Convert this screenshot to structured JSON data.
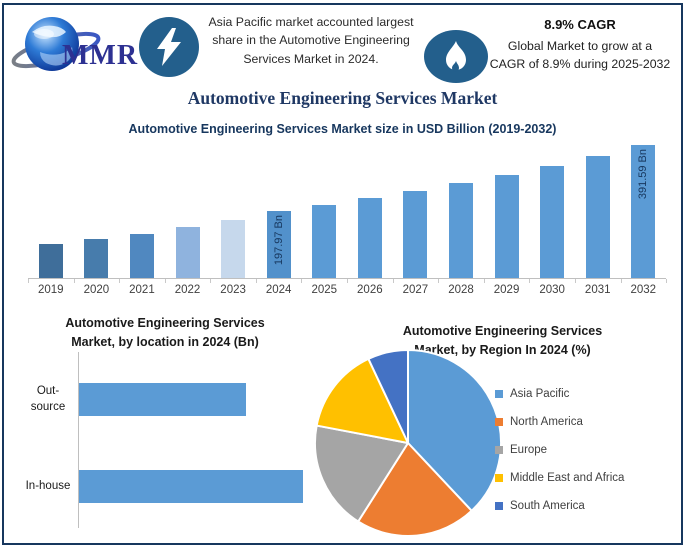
{
  "header": {
    "logo": {
      "text": "MMR"
    },
    "asia_pacific_note": "Asia Pacific market accounted largest\nshare in the Automotive Engineering\nServices Market in 2024.",
    "cagr_title": "8.9% CAGR",
    "cagr_note": "Global Market to grow at a\nCAGR of 8.9% during 2025-2032"
  },
  "main_title": "Automotive Engineering Services Market",
  "colors": {
    "frame": "#17375E",
    "icon_circle": "#235F8C",
    "default_bar": "#5B9BD5",
    "axis": "#BFBFBF",
    "data_label_text": "#17375E"
  },
  "chart_data": [
    {
      "type": "bar",
      "title": "Automotive Engineering Services Market size in USD Billion (2019-2032)",
      "xlabel": "",
      "ylabel": "USD Billion",
      "unit": "Bn",
      "grid": false,
      "ylim": [
        0,
        400
      ],
      "categories": [
        "2019",
        "2020",
        "2021",
        "2022",
        "2023",
        "2024",
        "2025",
        "2026",
        "2027",
        "2028",
        "2029",
        "2030",
        "2031",
        "2032"
      ],
      "values": [
        100,
        114,
        130,
        150,
        172,
        197.97,
        215.6,
        234.8,
        255.7,
        278.4,
        303.2,
        330.2,
        359.6,
        391.59
      ],
      "data_labels": {
        "2024": "197.97 Bn",
        "2032": "391.59 Bn"
      },
      "bar_colors": [
        "#3F6E9A",
        "#477CAC",
        "#5088C0",
        "#8FB3DE",
        "#C6D8EC",
        "#5291CB",
        "#5B9BD5",
        "#5B9BD5",
        "#5B9BD5",
        "#5B9BD5",
        "#5B9BD5",
        "#5B9BD5",
        "#5B9BD5",
        "#5B9BD5"
      ]
    },
    {
      "type": "bar",
      "orientation": "horizontal",
      "title": "Automotive Engineering Services\nMarket, by location in 2024 (Bn)",
      "xlabel": "",
      "ylabel": "",
      "unit": "Bn",
      "grid": false,
      "categories": [
        "Out-source",
        "In-house"
      ],
      "category_lines": [
        "Out-\nsource",
        "In-house"
      ],
      "values": [
        84.5,
        113.5
      ],
      "bar_color": "#5B9BD5"
    },
    {
      "type": "pie",
      "title": "Automotive Engineering Services\nMarket, by Region In 2024 (%)",
      "legend_position": "right",
      "start_angle_deg": 0,
      "direction": "clockwise",
      "labels": [
        "Asia Pacific",
        "North America",
        "Europe",
        "Middle East and Africa",
        "South America"
      ],
      "values": [
        38,
        21,
        19,
        15,
        7
      ],
      "colors": [
        "#5B9BD5",
        "#ED7D31",
        "#A5A5A5",
        "#FFC000",
        "#4472C4"
      ]
    }
  ]
}
